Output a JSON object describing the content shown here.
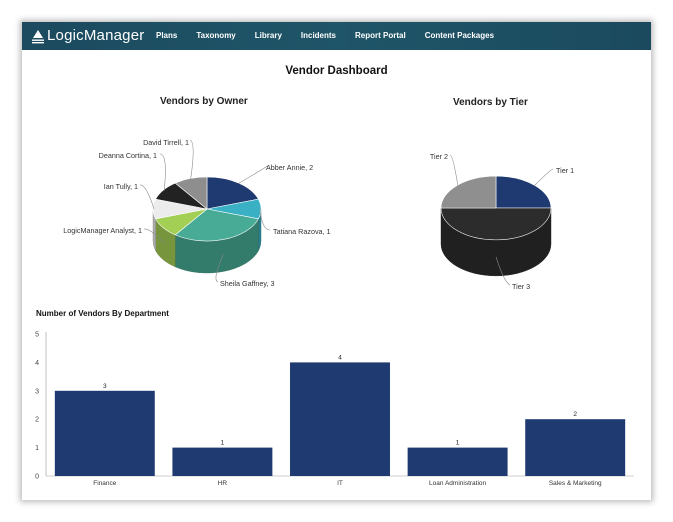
{
  "app": {
    "brand": "LogicManager",
    "nav": [
      "Plans",
      "Taxonomy",
      "Library",
      "Incidents",
      "Report Portal",
      "Content Packages"
    ]
  },
  "page": {
    "title": "Vendor Dashboard"
  },
  "colors": {
    "nav_bg": "#1d5063",
    "bar": "#1f3a70"
  },
  "chart_data": [
    {
      "type": "pie",
      "title": "Vendors by Owner",
      "slices": [
        {
          "label": "Abber Annie, 2",
          "value": 2,
          "color": "#1f3a70"
        },
        {
          "label": "Tatiana Razova, 1",
          "value": 1,
          "color": "#3ab0c4"
        },
        {
          "label": "Sheila Gaffney, 3",
          "value": 3,
          "color": "#47ab95"
        },
        {
          "label": "LogicManager Analyst, 1",
          "value": 1,
          "color": "#a4cf55"
        },
        {
          "label": "Ian Tully, 1",
          "value": 1,
          "color": "#ececec"
        },
        {
          "label": "Deanna Cortina, 1",
          "value": 1,
          "color": "#222222"
        },
        {
          "label": "David Tirrell, 1",
          "value": 1,
          "color": "#8e8e8e"
        }
      ]
    },
    {
      "type": "pie",
      "title": "Vendors by Tier",
      "slices": [
        {
          "label": "Tier 1",
          "value": 1,
          "color": "#1f3a70"
        },
        {
          "label": "Tier 3",
          "value": 2,
          "color": "#2c2c2c"
        },
        {
          "label": "Tier 2",
          "value": 1,
          "color": "#8f8f8f"
        }
      ]
    },
    {
      "type": "bar",
      "title": "Number of Vendors By Department",
      "categories": [
        "Finance",
        "HR",
        "IT",
        "Loan Administration",
        "Sales & Marketing"
      ],
      "values": [
        3,
        1,
        4,
        1,
        2
      ],
      "ylim": [
        0,
        5
      ],
      "yticks": [
        0,
        1,
        2,
        3,
        4,
        5
      ]
    }
  ]
}
